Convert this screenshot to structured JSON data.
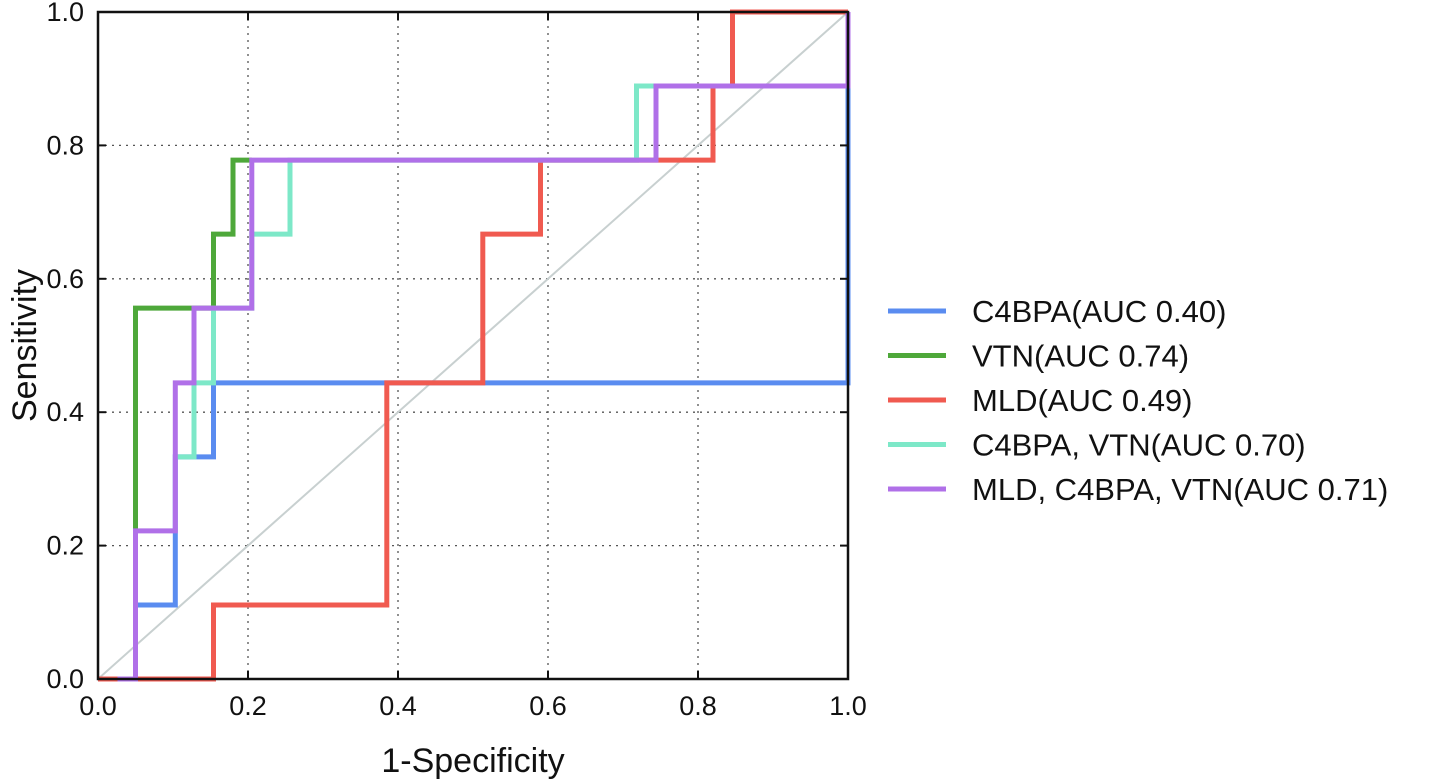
{
  "chart_data": {
    "type": "line",
    "title": "",
    "xlabel": "1-Specificity",
    "ylabel": "Sensitivity",
    "xlim": [
      0,
      1
    ],
    "ylim": [
      0,
      1
    ],
    "grid": true,
    "legend_position": "right",
    "xticks": [
      "0.0",
      "0.2",
      "0.4",
      "0.6",
      "0.8",
      "1.0"
    ],
    "yticks": [
      "0.0",
      "0.2",
      "0.4",
      "0.6",
      "0.8",
      "1.0"
    ],
    "diagonal": {
      "x": [
        0,
        1
      ],
      "y": [
        0,
        1
      ],
      "color": "#c8d0d0"
    },
    "series": [
      {
        "name": "C4BPA(AUC 0.40)",
        "color": "#5a8cf0",
        "x": [
          0,
          0.05,
          0.05,
          0.103,
          0.103,
          0.154,
          0.154,
          1.0,
          1.0
        ],
        "y": [
          0,
          0,
          0.111,
          0.111,
          0.333,
          0.333,
          0.444,
          0.444,
          0.889
        ]
      },
      {
        "name": "VTN(AUC 0.74)",
        "color": "#4ea83a",
        "x": [
          0.05,
          0.05,
          0.154,
          0.154,
          0.18,
          0.18,
          0.205
        ],
        "y": [
          0.222,
          0.556,
          0.556,
          0.667,
          0.667,
          0.778,
          0.778
        ]
      },
      {
        "name": "MLD(AUC 0.49)",
        "color": "#f05a50",
        "x": [
          0,
          0.154,
          0.154,
          0.385,
          0.385,
          0.513,
          0.513,
          0.59,
          0.59,
          0.744,
          0.82,
          0.82,
          0.846,
          0.846,
          1.0
        ],
        "y": [
          0,
          0,
          0.111,
          0.111,
          0.444,
          0.444,
          0.667,
          0.667,
          0.778,
          0.778,
          0.778,
          0.889,
          0.889,
          1.0,
          1.0
        ]
      },
      {
        "name": "C4BPA, VTN(AUC 0.70)",
        "color": "#7de8c8",
        "x": [
          0.103,
          0.128,
          0.128,
          0.154,
          0.154,
          0.205,
          0.205,
          0.256,
          0.256,
          0.718,
          0.718,
          0.744
        ],
        "y": [
          0.333,
          0.333,
          0.444,
          0.444,
          0.556,
          0.556,
          0.667,
          0.667,
          0.778,
          0.778,
          0.889,
          0.889
        ]
      },
      {
        "name": "MLD, C4BPA, VTN(AUC 0.71)",
        "color": "#b070e8",
        "x": [
          0.026,
          0.05,
          0.05,
          0.103,
          0.103,
          0.128,
          0.128,
          0.205,
          0.205,
          0.744,
          0.744,
          1.0,
          1.0
        ],
        "y": [
          0,
          0,
          0.222,
          0.222,
          0.444,
          0.444,
          0.556,
          0.556,
          0.778,
          0.778,
          0.889,
          0.889,
          1.0
        ]
      }
    ]
  }
}
